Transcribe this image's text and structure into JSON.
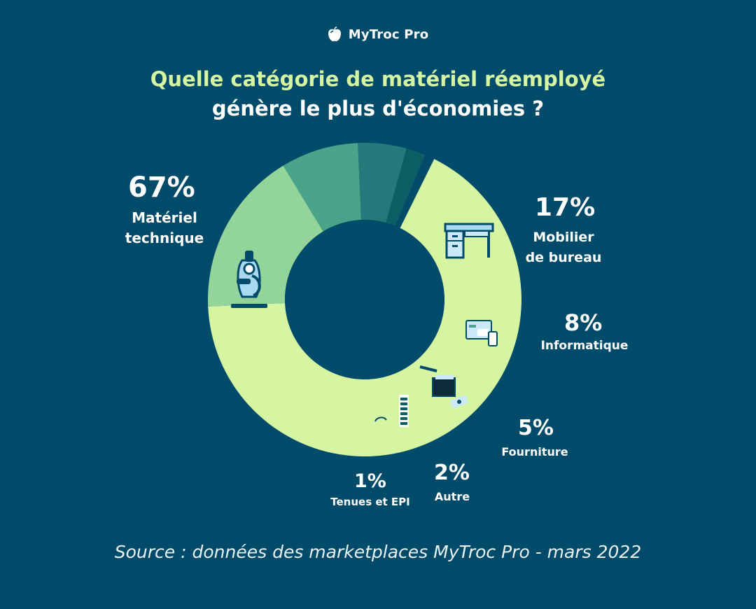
{
  "brand": {
    "name": "MyTroc Pro"
  },
  "title": {
    "line1": "Quelle catégorie de matériel réemployé",
    "line2": "génère le plus d'économies ?"
  },
  "source": "Source : données des marketplaces MyTroc Pro - mars 2022",
  "colors": {
    "background": "#004a6a",
    "accent": "#d6f5a3"
  },
  "chart_data": {
    "type": "pie",
    "donut": true,
    "slices": [
      {
        "label": "Matériel technique",
        "value": 67,
        "value_label": "67%",
        "color": "#d6f5a3",
        "icon": "microscope-icon"
      },
      {
        "label": "Mobilier de bureau",
        "value": 17,
        "value_label": "17%",
        "color": "#93d49b",
        "icon": "desk-icon"
      },
      {
        "label": "Informatique",
        "value": 8,
        "value_label": "8%",
        "color": "#4aa48a",
        "icon": "computer-tools-icon"
      },
      {
        "label": "Fourniture",
        "value": 5,
        "value_label": "5%",
        "color": "#247a7a",
        "icon": "office-supplies-icon"
      },
      {
        "label": "Autre",
        "value": 2,
        "value_label": "2%",
        "color": "#0c5e64",
        "icon": "battery-icon"
      },
      {
        "label": "Tenues et EPI",
        "value": 1,
        "value_label": "1%",
        "color": "#004a6a",
        "icon": "helmet-icon"
      }
    ]
  }
}
